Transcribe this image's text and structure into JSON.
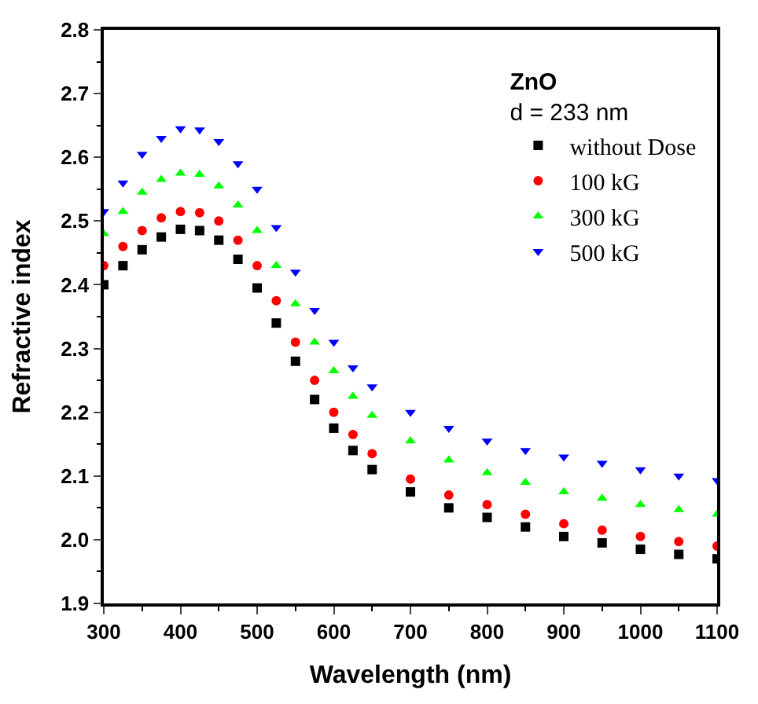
{
  "chart_data": {
    "type": "scatter",
    "xlabel": "Wavelength (nm)",
    "ylabel": "Refractive index",
    "legend_title": "ZnO",
    "annotations": [
      "d = 233 nm"
    ],
    "x": [
      300,
      325,
      350,
      375,
      400,
      425,
      450,
      475,
      500,
      525,
      550,
      575,
      600,
      625,
      650,
      700,
      750,
      800,
      850,
      900,
      950,
      1000,
      1050,
      1100
    ],
    "series": [
      {
        "name": "without Dose",
        "color": "#000000",
        "marker": "square",
        "values": [
          2.4,
          2.43,
          2.455,
          2.475,
          2.487,
          2.485,
          2.47,
          2.44,
          2.395,
          2.34,
          2.28,
          2.22,
          2.175,
          2.14,
          2.11,
          2.075,
          2.05,
          2.035,
          2.02,
          2.005,
          1.995,
          1.985,
          1.977,
          1.97
        ]
      },
      {
        "name": "100 kG",
        "color": "#ff0000",
        "marker": "circle",
        "values": [
          2.43,
          2.46,
          2.485,
          2.505,
          2.515,
          2.513,
          2.5,
          2.47,
          2.43,
          2.375,
          2.31,
          2.25,
          2.2,
          2.165,
          2.135,
          2.095,
          2.07,
          2.055,
          2.04,
          2.025,
          2.015,
          2.005,
          1.997,
          1.99
        ]
      },
      {
        "name": "300 kG",
        "color": "#00ff00",
        "marker": "triangle",
        "values": [
          2.48,
          2.515,
          2.545,
          2.565,
          2.575,
          2.573,
          2.555,
          2.525,
          2.485,
          2.43,
          2.37,
          2.31,
          2.265,
          2.225,
          2.195,
          2.155,
          2.125,
          2.105,
          2.09,
          2.075,
          2.065,
          2.055,
          2.047,
          2.04
        ]
      },
      {
        "name": "500 kG",
        "color": "#0000ff",
        "marker": "triangle-down",
        "values": [
          2.515,
          2.56,
          2.605,
          2.63,
          2.645,
          2.643,
          2.625,
          2.59,
          2.55,
          2.49,
          2.42,
          2.36,
          2.31,
          2.27,
          2.24,
          2.2,
          2.175,
          2.155,
          2.14,
          2.13,
          2.12,
          2.11,
          2.1,
          2.093
        ]
      }
    ],
    "xlim": [
      300,
      1100
    ],
    "xticks": [
      300,
      400,
      500,
      600,
      700,
      800,
      900,
      1000,
      1100
    ],
    "ylim": [
      1.9,
      2.8
    ],
    "yticks": [
      1.9,
      {
        "value": 2.0,
        "label": "2.0"
      },
      2.1,
      2.2,
      2.3,
      2.4,
      2.5,
      2.6,
      2.7,
      2.8
    ],
    "legend": "top right"
  }
}
